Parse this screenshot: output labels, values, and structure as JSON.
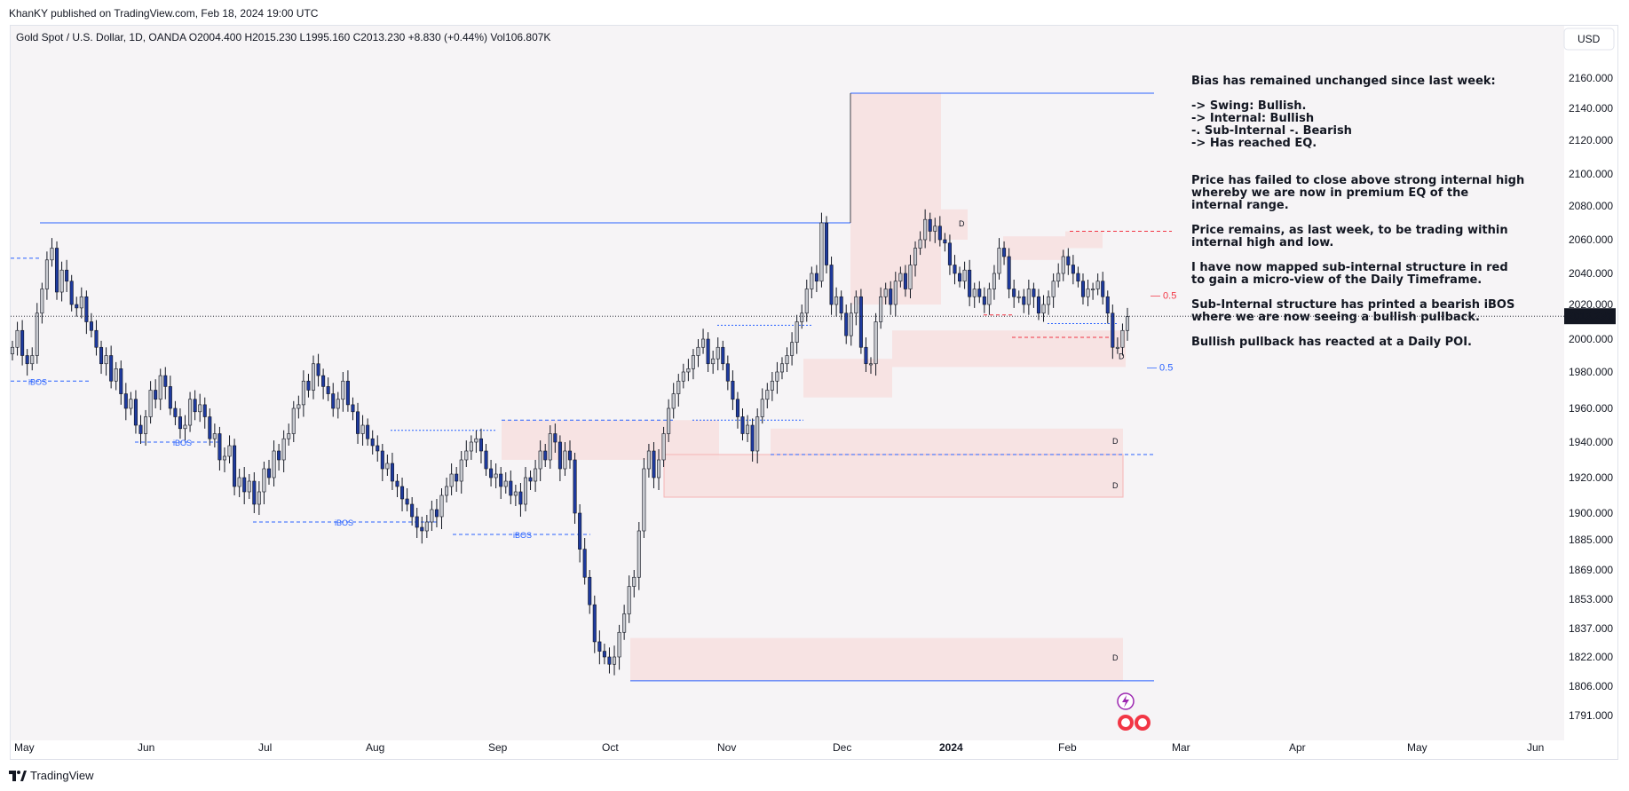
{
  "header": {
    "published": "KhanKY published on TradingView.com, Feb 18, 2024 19:00 UTC"
  },
  "legend": {
    "text": "Gold Spot / U.S. Dollar, 1D, OANDA  O2004.400  H2015.230  L1995.160  C2013.230  +8.830 (+0.44%)  Vol106.807K"
  },
  "currency_button": "USD",
  "price_label": "2013.230",
  "footer": {
    "brand": "TradingView"
  },
  "colors": {
    "bull_body": "#c7c9cf",
    "bear_body": "#1e3a9e",
    "wick": "#131722",
    "zone_fill": "#f7dfdf",
    "blue_line": "#2962ff",
    "red_line": "#f23645",
    "chart_bg": "#f6f4f6"
  },
  "notes": [
    "Bias has remained unchanged since last week:",
    "",
    "-> Swing: Bullish.",
    "-> Internal: Bullish",
    "-. Sub-Internal -. Bearish",
    "-> Has reached EQ.",
    "",
    "",
    "Price has failed to close above strong internal high",
    "whereby we are now in premium EQ of the",
    "internal range.",
    "",
    "Price remains, as last week, to be trading within",
    "internal high and low.",
    "",
    "I have now mapped sub-internal structure in red",
    "to gain a micro-view of the Daily Timeframe.",
    "",
    "Sub-Internal structure has printed a bearish iBOS",
    "where we are now seeing a bullish pullback.",
    "",
    "Bullish pullback has reacted at a Daily POI."
  ],
  "annotations": {
    "ibos": "iBOS",
    "d": "D",
    "eq_red": "0.5",
    "eq_blue": "0.5"
  },
  "chart_data": {
    "type": "candlestick",
    "title": "Gold Spot / U.S. Dollar, 1D, OANDA",
    "x_ticks": [
      "May",
      "Jun",
      "Jul",
      "Aug",
      "Sep",
      "Oct",
      "Nov",
      "Dec",
      "2024",
      "Feb",
      "Mar",
      "Apr",
      "May",
      "Jun"
    ],
    "y_ticks": [
      2160,
      2140,
      2120,
      2100,
      2080,
      2060,
      2040,
      2020,
      2000,
      1980,
      1960,
      1940,
      1920,
      1900,
      1885,
      1869,
      1853,
      1837,
      1822,
      1806,
      1791
    ],
    "y_tick_labels": [
      "2160.000",
      "2140.000",
      "2120.000",
      "2100.000",
      "2080.000",
      "2060.000",
      "2040.000",
      "2020.000",
      "2000.000",
      "1980.000",
      "1960.000",
      "1940.000",
      "1920.000",
      "1900.000",
      "1885.000",
      "1869.000",
      "1853.000",
      "1837.000",
      "1822.000",
      "1806.000",
      "1791.000"
    ],
    "ylim": [
      1785,
      2170
    ],
    "last_close": 2013.23,
    "open": 2004.4,
    "high": 2015.23,
    "low": 1995.16,
    "close": 2013.23,
    "change": 8.83,
    "change_pct": 0.44,
    "volume": "106.807K",
    "ohlc_closes": [
      1995,
      2005,
      1990,
      1985,
      1990,
      2015,
      2030,
      2048,
      2055,
      2028,
      2042,
      2035,
      2020,
      2018,
      2025,
      2010,
      2005,
      1995,
      1985,
      1990,
      1975,
      1982,
      1968,
      1960,
      1965,
      1950,
      1945,
      1955,
      1970,
      1965,
      1978,
      1972,
      1960,
      1955,
      1948,
      1950,
      1965,
      1958,
      1962,
      1955,
      1942,
      1945,
      1930,
      1932,
      1938,
      1915,
      1920,
      1912,
      1918,
      1905,
      1912,
      1925,
      1920,
      1935,
      1930,
      1942,
      1945,
      1960,
      1962,
      1975,
      1970,
      1985,
      1978,
      1972,
      1968,
      1960,
      1965,
      1975,
      1962,
      1958,
      1945,
      1950,
      1942,
      1938,
      1935,
      1925,
      1928,
      1918,
      1915,
      1908,
      1905,
      1898,
      1892,
      1890,
      1895,
      1902,
      1898,
      1910,
      1915,
      1922,
      1918,
      1930,
      1935,
      1940,
      1942,
      1935,
      1925,
      1920,
      1922,
      1915,
      1918,
      1910,
      1912,
      1905,
      1920,
      1918,
      1925,
      1935,
      1930,
      1945,
      1940,
      1925,
      1935,
      1930,
      1900,
      1880,
      1865,
      1850,
      1830,
      1825,
      1822,
      1818,
      1822,
      1835,
      1845,
      1860,
      1865,
      1890,
      1925,
      1935,
      1920,
      1930,
      1945,
      1960,
      1968,
      1975,
      1980,
      1982,
      1990,
      1995,
      2000,
      1985,
      1988,
      1995,
      1985,
      1975,
      1965,
      1955,
      1945,
      1950,
      1935,
      1955,
      1965,
      1970,
      1975,
      1980,
      1985,
      1990,
      1998,
      2010,
      2015,
      2030,
      2040,
      2035,
      2070,
      2045,
      2020,
      2025,
      2015,
      2002,
      2015,
      2025,
      1995,
      1985,
      1985,
      2010,
      2025,
      2030,
      2020,
      2035,
      2040,
      2030,
      2045,
      2055,
      2060,
      2072,
      2065,
      2068,
      2060,
      2058,
      2045,
      2040,
      2035,
      2042,
      2025,
      2030,
      2025,
      2020,
      2030,
      2040,
      2055,
      2050,
      2030,
      2025,
      2025,
      2020,
      2030,
      2025,
      2015,
      2020,
      2025,
      2035,
      2040,
      2050,
      2045,
      2040,
      2035,
      2025,
      2030,
      2030,
      2035,
      2025,
      2015,
      1995,
      1995,
      2005,
      2013
    ]
  }
}
